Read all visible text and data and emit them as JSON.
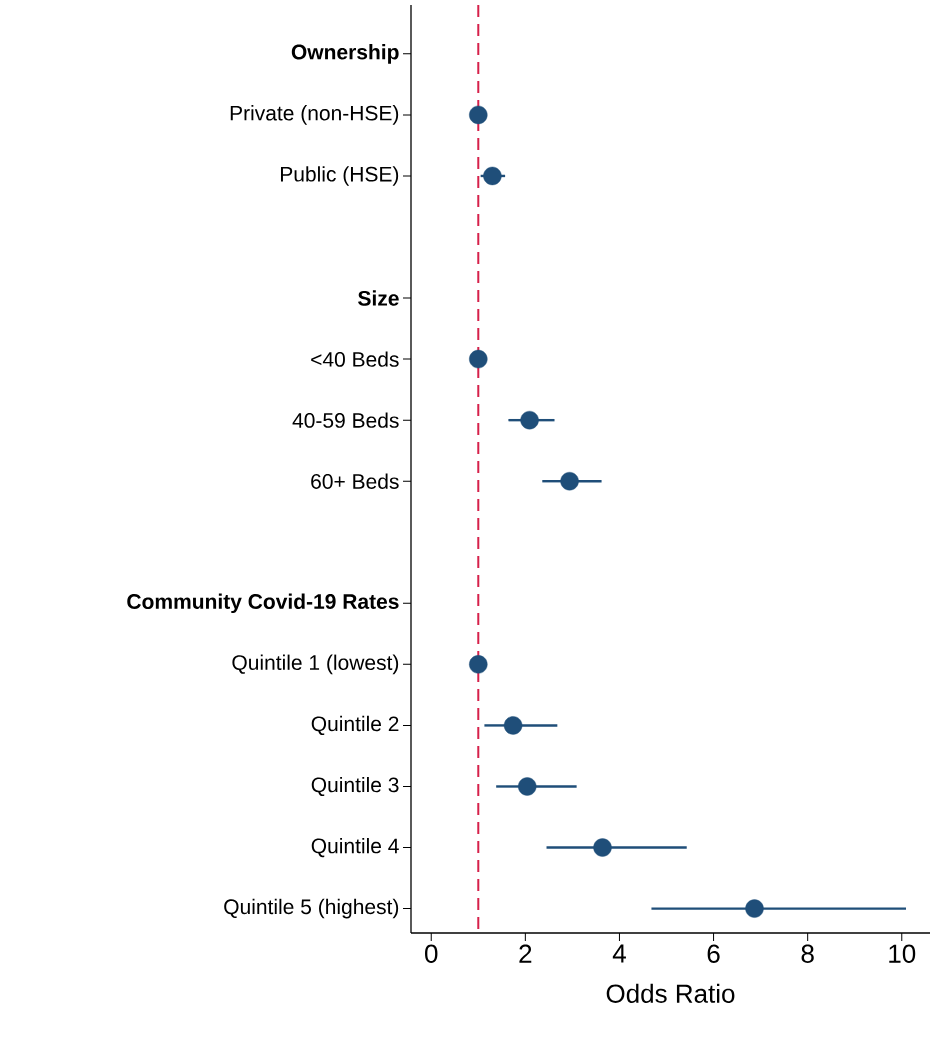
{
  "chart_data": {
    "type": "scatter",
    "orientation": "horizontal",
    "xlabel": "Odds Ratio",
    "categories": [
      "Ownership",
      "Private (non-HSE)",
      "Public (HSE)",
      null,
      "Size",
      "<40 Beds",
      "40-59 Beds",
      "60+ Beds",
      null,
      "Community Covid-19 Rates",
      "Quintile 1 (lowest)",
      "Quintile 2",
      "Quintile 3",
      "Quintile 4",
      "Quintile 5 (highest)"
    ],
    "values": [
      null,
      1,
      1.3,
      null,
      null,
      1,
      2.09,
      2.94,
      null,
      null,
      1,
      1.74,
      2.04,
      3.64,
      6.87
    ],
    "errors": [
      null,
      null,
      [
        1.05,
        1.57
      ],
      null,
      null,
      null,
      [
        1.64,
        2.62
      ],
      [
        2.36,
        3.62
      ],
      null,
      null,
      null,
      [
        1.13,
        2.68
      ],
      [
        1.38,
        3.09
      ],
      [
        2.45,
        5.43
      ],
      [
        4.68,
        10.09
      ]
    ],
    "color": "#1f4e79",
    "marker": "circle",
    "xlim": [
      -0.43,
      10.6
    ],
    "xticks": [
      0,
      2,
      4,
      6,
      8,
      10
    ],
    "ref_lines": [
      {
        "axis": "x",
        "value": 1,
        "color": "#d6204a",
        "line_style": "dashed"
      }
    ],
    "grid": false
  }
}
